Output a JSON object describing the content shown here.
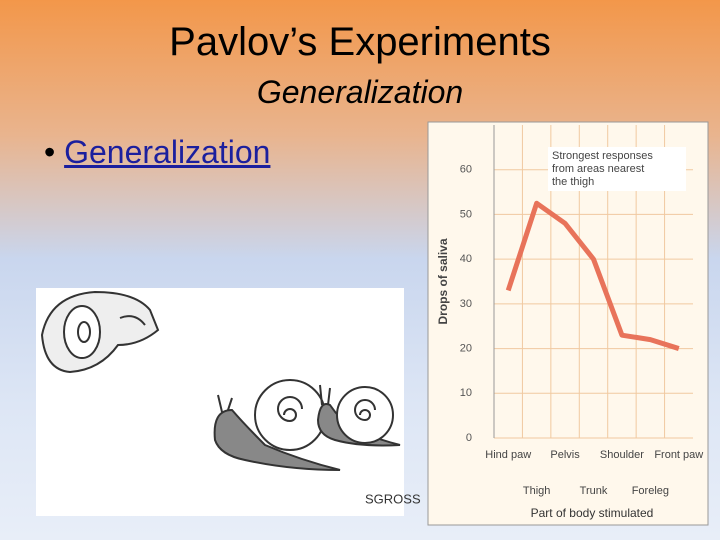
{
  "slide": {
    "title": "Pavlov’s Experiments",
    "subtitle": "Generalization",
    "bullet": "Generalization",
    "cartoon_signature": "SGROSS"
  },
  "chart_data": {
    "type": "line",
    "categories": [
      "Hind paw",
      "Thigh",
      "Pelvis",
      "Trunk",
      "Shoulder",
      "Foreleg",
      "Front paw"
    ],
    "values": [
      33,
      52.5,
      48,
      40,
      23,
      22,
      20
    ],
    "color": "#e8735a",
    "ylim": [
      0,
      70
    ],
    "yticks": [
      0,
      10,
      20,
      30,
      40,
      50,
      60
    ],
    "grid": true,
    "y_label": "Drops of saliva",
    "x_label": "Part of body stimulated",
    "annotation": [
      "Strongest responses",
      "from areas nearest",
      "the thigh"
    ]
  }
}
